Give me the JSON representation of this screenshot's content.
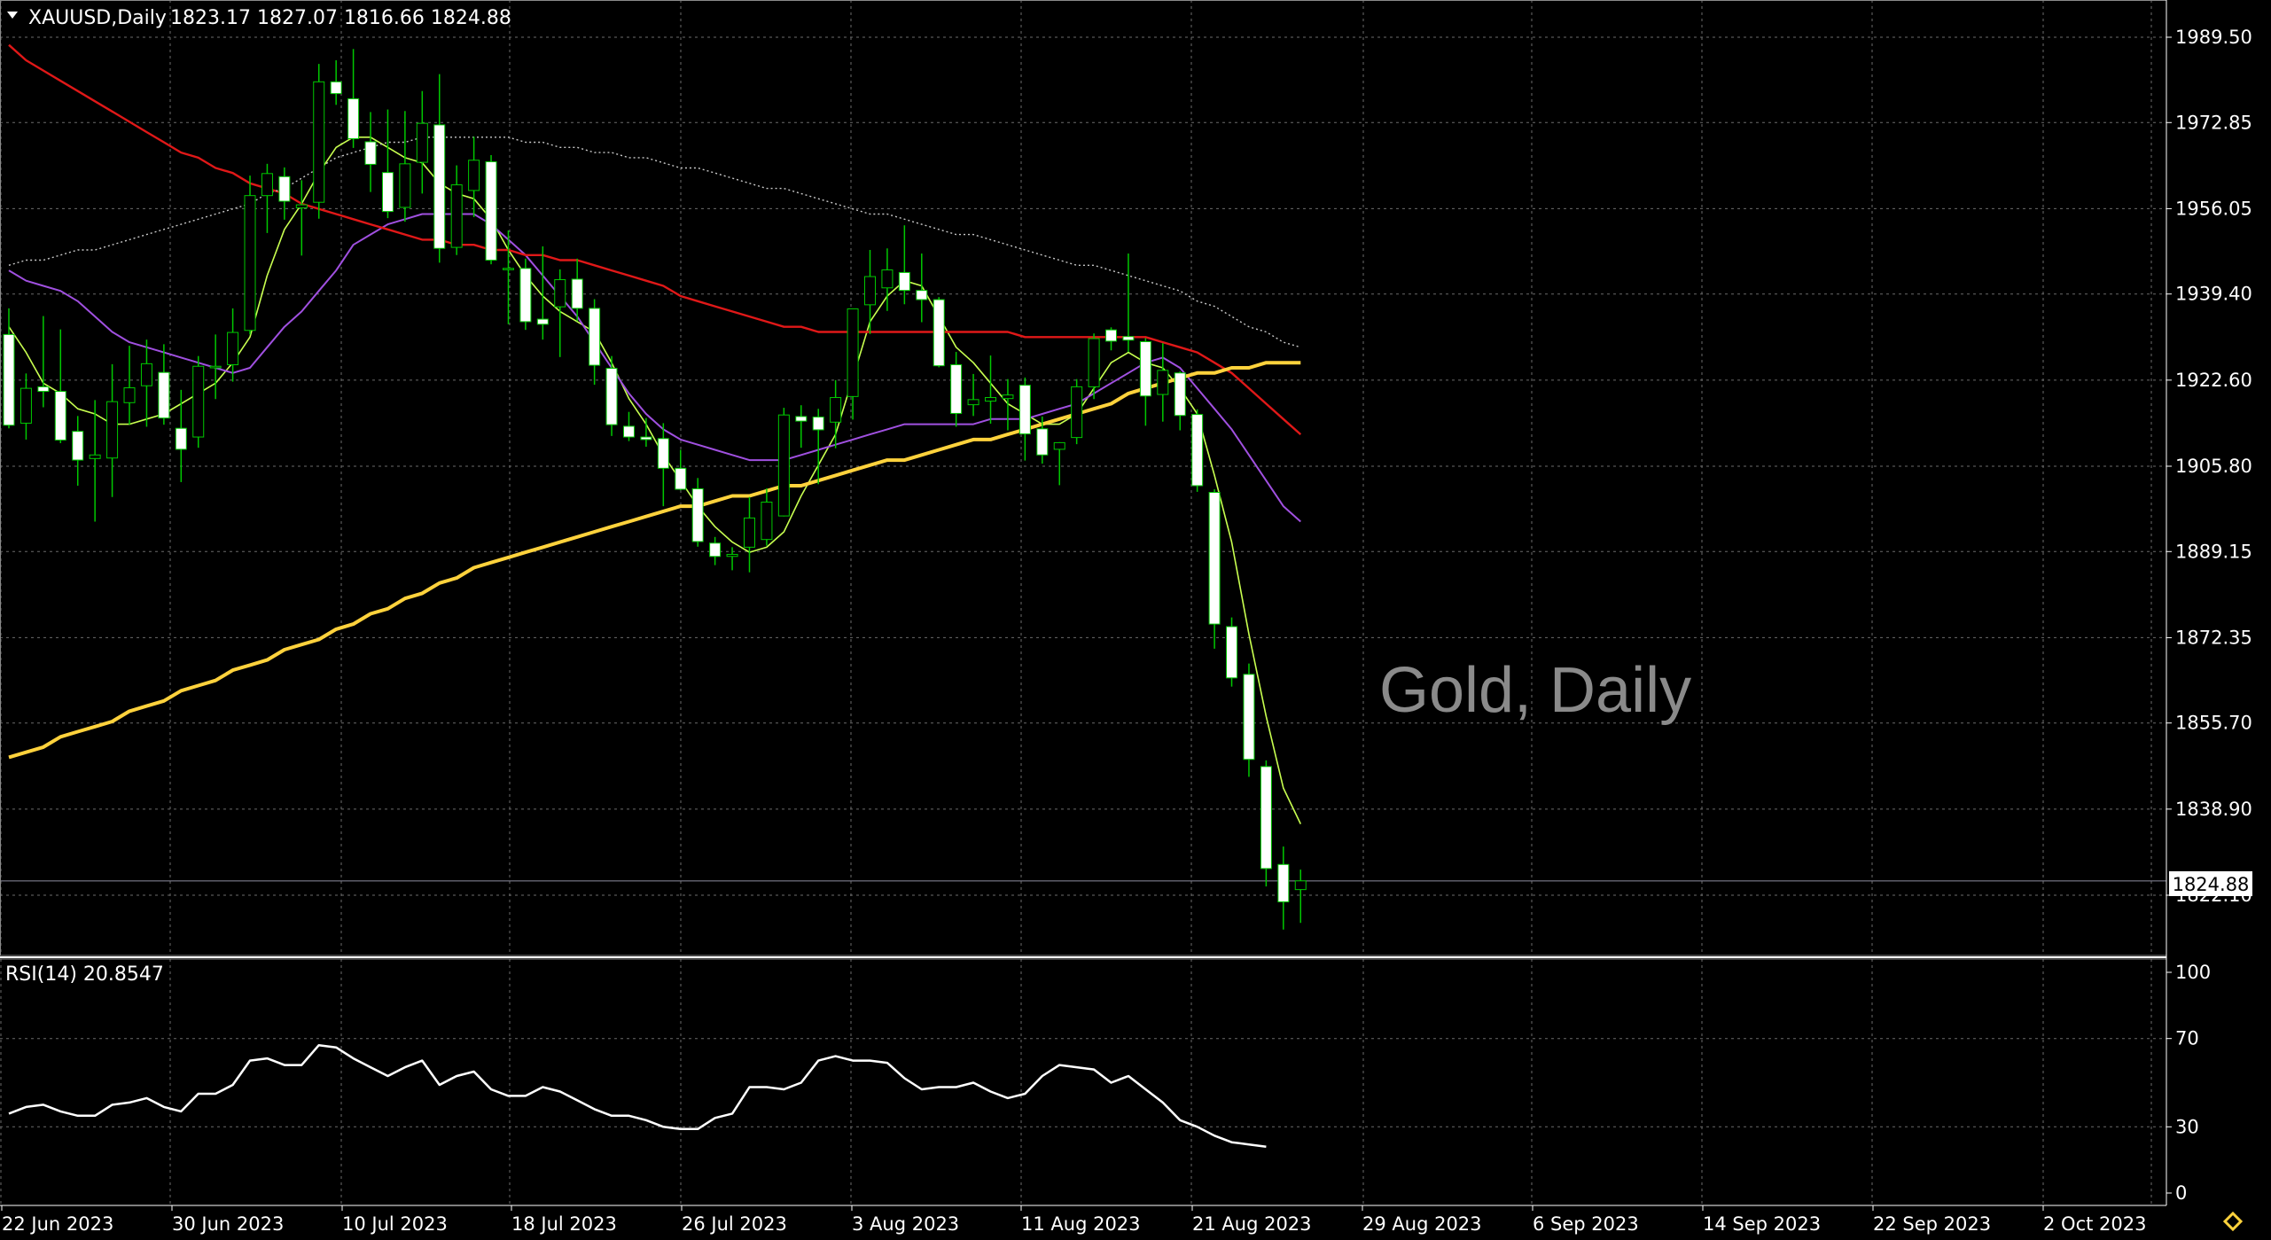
{
  "header": {
    "symbol": "XAUUSD,Daily",
    "ohlc": "1823.17 1827.07 1816.66 1824.88"
  },
  "watermark": "Gold, Daily",
  "current_price_label": "1824.88",
  "rsi_label": "RSI(14) 20.8547",
  "colors": {
    "background": "#000000",
    "grid": "#6b6b6b",
    "candle_up": "#000000",
    "candle_down": "#ffffff",
    "wick": "#00c800",
    "ma_fast": "#c8ff50",
    "ma_mid": "#a050e0",
    "ma_slow": "#e01818",
    "ma_long": "#ffd23c",
    "ma_dotted": "#c8c8c8",
    "rsi": "#ffffff",
    "watermark": "#8a8a8a"
  },
  "chart_data": [
    {
      "type": "candlestick",
      "title": "XAUUSD,Daily",
      "ylim": [
        1810,
        2000
      ],
      "y_ticks": [
        "1989.50",
        "1972.85",
        "1956.05",
        "1939.40",
        "1922.60",
        "1905.80",
        "1889.15",
        "1872.35",
        "1855.70",
        "1838.90",
        "1822.10"
      ],
      "x_ticks": [
        "22 Jun 2023",
        "30 Jun 2023",
        "10 Jul 2023",
        "18 Jul 2023",
        "26 Jul 2023",
        "3 Aug 2023",
        "11 Aug 2023",
        "21 Aug 2023",
        "29 Aug 2023",
        "6 Sep 2023",
        "14 Sep 2023",
        "22 Sep 2023",
        "2 Oct 2023"
      ],
      "candles": [
        {
          "o": 1931.5,
          "h": 1936.6,
          "l": 1913.2,
          "c": 1913.8
        },
        {
          "o": 1914.2,
          "h": 1923.9,
          "l": 1911.0,
          "c": 1921.0
        },
        {
          "o": 1921.3,
          "h": 1935.1,
          "l": 1917.3,
          "c": 1920.4
        },
        {
          "o": 1920.4,
          "h": 1932.5,
          "l": 1910.3,
          "c": 1910.9
        },
        {
          "o": 1912.6,
          "h": 1915.6,
          "l": 1902.0,
          "c": 1907.0
        },
        {
          "o": 1907.3,
          "h": 1918.7,
          "l": 1895.0,
          "c": 1908.0
        },
        {
          "o": 1907.4,
          "h": 1925.7,
          "l": 1899.8,
          "c": 1918.4
        },
        {
          "o": 1918.2,
          "h": 1929.3,
          "l": 1913.9,
          "c": 1921.1
        },
        {
          "o": 1921.5,
          "h": 1930.5,
          "l": 1913.5,
          "c": 1925.8
        },
        {
          "o": 1924.1,
          "h": 1929.6,
          "l": 1913.9,
          "c": 1915.2
        },
        {
          "o": 1913.2,
          "h": 1920.7,
          "l": 1902.7,
          "c": 1909.1
        },
        {
          "o": 1911.5,
          "h": 1927.3,
          "l": 1909.4,
          "c": 1925.3
        },
        {
          "o": 1925.0,
          "h": 1931.5,
          "l": 1918.9,
          "c": 1925.3
        },
        {
          "o": 1925.6,
          "h": 1936.6,
          "l": 1922.3,
          "c": 1931.9
        },
        {
          "o": 1932.3,
          "h": 1962.5,
          "l": 1931.5,
          "c": 1958.6
        },
        {
          "o": 1958.6,
          "h": 1964.8,
          "l": 1951.3,
          "c": 1962.9
        },
        {
          "o": 1962.3,
          "h": 1964.1,
          "l": 1953.9,
          "c": 1957.5
        },
        {
          "o": 1956.2,
          "h": 1961.6,
          "l": 1946.9,
          "c": 1956.8
        },
        {
          "o": 1957.3,
          "h": 1984.3,
          "l": 1954.1,
          "c": 1980.8
        },
        {
          "o": 1980.8,
          "h": 1985.0,
          "l": 1976.3,
          "c": 1978.5
        },
        {
          "o": 1977.5,
          "h": 1987.2,
          "l": 1967.9,
          "c": 1969.7
        },
        {
          "o": 1969.1,
          "h": 1974.9,
          "l": 1959.3,
          "c": 1964.7
        },
        {
          "o": 1963.1,
          "h": 1975.4,
          "l": 1954.2,
          "c": 1955.5
        },
        {
          "o": 1956.3,
          "h": 1975.1,
          "l": 1953.5,
          "c": 1964.8
        },
        {
          "o": 1965.1,
          "h": 1979.0,
          "l": 1959.0,
          "c": 1972.7
        },
        {
          "o": 1972.4,
          "h": 1982.3,
          "l": 1945.5,
          "c": 1948.3
        },
        {
          "o": 1948.5,
          "h": 1964.5,
          "l": 1947.0,
          "c": 1960.7
        },
        {
          "o": 1959.6,
          "h": 1970.1,
          "l": 1954.4,
          "c": 1965.5
        },
        {
          "o": 1965.2,
          "h": 1966.5,
          "l": 1945.2,
          "c": 1946.0
        },
        {
          "o": 1944.4,
          "h": 1951.8,
          "l": 1933.5,
          "c": 1944.4
        },
        {
          "o": 1944.4,
          "h": 1946.3,
          "l": 1932.4,
          "c": 1934.0
        },
        {
          "o": 1934.5,
          "h": 1948.7,
          "l": 1930.5,
          "c": 1933.5
        },
        {
          "o": 1936.9,
          "h": 1944.2,
          "l": 1927.1,
          "c": 1942.2
        },
        {
          "o": 1942.3,
          "h": 1946.3,
          "l": 1934.1,
          "c": 1936.6
        },
        {
          "o": 1936.6,
          "h": 1938.4,
          "l": 1921.7,
          "c": 1925.5
        },
        {
          "o": 1924.9,
          "h": 1927.3,
          "l": 1911.7,
          "c": 1913.9
        },
        {
          "o": 1913.6,
          "h": 1916.4,
          "l": 1910.7,
          "c": 1911.5
        },
        {
          "o": 1911.5,
          "h": 1915.2,
          "l": 1909.6,
          "c": 1911.0
        },
        {
          "o": 1911.2,
          "h": 1914.2,
          "l": 1898.0,
          "c": 1905.4
        },
        {
          "o": 1905.4,
          "h": 1909.0,
          "l": 1901.1,
          "c": 1901.3
        },
        {
          "o": 1901.4,
          "h": 1903.5,
          "l": 1890.1,
          "c": 1891.1
        },
        {
          "o": 1890.8,
          "h": 1892.0,
          "l": 1886.5,
          "c": 1888.2
        },
        {
          "o": 1888.2,
          "h": 1890.0,
          "l": 1885.5,
          "c": 1888.6
        },
        {
          "o": 1890.0,
          "h": 1899.8,
          "l": 1885.1,
          "c": 1895.7
        },
        {
          "o": 1891.5,
          "h": 1901.5,
          "l": 1890.3,
          "c": 1898.8
        },
        {
          "o": 1896.1,
          "h": 1917.2,
          "l": 1896.0,
          "c": 1915.8
        },
        {
          "o": 1915.5,
          "h": 1917.7,
          "l": 1909.4,
          "c": 1914.6
        },
        {
          "o": 1915.4,
          "h": 1917.0,
          "l": 1902.3,
          "c": 1912.9
        },
        {
          "o": 1914.4,
          "h": 1922.6,
          "l": 1909.3,
          "c": 1919.2
        },
        {
          "o": 1919.4,
          "h": 1935.4,
          "l": 1914.9,
          "c": 1936.5
        },
        {
          "o": 1937.3,
          "h": 1948.0,
          "l": 1931.6,
          "c": 1942.8
        },
        {
          "o": 1940.6,
          "h": 1948.3,
          "l": 1936.1,
          "c": 1944.1
        },
        {
          "o": 1943.6,
          "h": 1952.8,
          "l": 1937.4,
          "c": 1940.1
        },
        {
          "o": 1940.1,
          "h": 1947.3,
          "l": 1933.9,
          "c": 1938.3
        },
        {
          "o": 1938.3,
          "h": 1938.8,
          "l": 1925.1,
          "c": 1925.4
        },
        {
          "o": 1925.6,
          "h": 1928.1,
          "l": 1913.5,
          "c": 1916.1
        },
        {
          "o": 1917.8,
          "h": 1923.8,
          "l": 1915.6,
          "c": 1918.8
        },
        {
          "o": 1918.5,
          "h": 1927.4,
          "l": 1914.1,
          "c": 1919.2
        },
        {
          "o": 1919.0,
          "h": 1922.8,
          "l": 1912.8,
          "c": 1919.7
        },
        {
          "o": 1921.6,
          "h": 1923.1,
          "l": 1906.9,
          "c": 1912.1
        },
        {
          "o": 1913.1,
          "h": 1915.5,
          "l": 1906.3,
          "c": 1908.0
        },
        {
          "o": 1909.1,
          "h": 1910.5,
          "l": 1902.1,
          "c": 1910.4
        },
        {
          "o": 1911.4,
          "h": 1922.8,
          "l": 1910.1,
          "c": 1921.3
        },
        {
          "o": 1921.3,
          "h": 1931.7,
          "l": 1918.9,
          "c": 1930.7
        },
        {
          "o": 1932.4,
          "h": 1932.9,
          "l": 1928.4,
          "c": 1930.2
        },
        {
          "o": 1931.1,
          "h": 1947.3,
          "l": 1928.1,
          "c": 1930.4
        },
        {
          "o": 1930.1,
          "h": 1930.8,
          "l": 1913.7,
          "c": 1919.5
        },
        {
          "o": 1919.8,
          "h": 1929.8,
          "l": 1914.5,
          "c": 1924.5
        },
        {
          "o": 1924.0,
          "h": 1924.3,
          "l": 1912.8,
          "c": 1915.7
        },
        {
          "o": 1915.9,
          "h": 1916.9,
          "l": 1900.8,
          "c": 1902.0
        },
        {
          "o": 1900.7,
          "h": 1901.3,
          "l": 1870.2,
          "c": 1875.0
        },
        {
          "o": 1874.5,
          "h": 1876.3,
          "l": 1862.8,
          "c": 1864.5
        },
        {
          "o": 1865.2,
          "h": 1867.3,
          "l": 1845.2,
          "c": 1848.6
        },
        {
          "o": 1847.2,
          "h": 1848.4,
          "l": 1823.8,
          "c": 1827.3
        },
        {
          "o": 1828.1,
          "h": 1831.6,
          "l": 1815.4,
          "c": 1820.8
        },
        {
          "o": 1823.2,
          "h": 1827.1,
          "l": 1816.7,
          "c": 1824.9
        }
      ],
      "series": [
        {
          "color_key": "ma_fast",
          "values": [
            1933,
            1928,
            1922,
            1920,
            1917,
            1916,
            1914,
            1914,
            1915,
            1916,
            1918,
            1920,
            1922,
            1926,
            1931,
            1943,
            1952,
            1957,
            1963,
            1968,
            1970,
            1970,
            1968,
            1966,
            1965,
            1961,
            1959,
            1958,
            1954,
            1948,
            1943,
            1939,
            1936,
            1934,
            1932,
            1926,
            1919,
            1914,
            1908,
            1903,
            1898,
            1894,
            1891,
            1889,
            1890,
            1893,
            1900,
            1906,
            1912,
            1923,
            1934,
            1939,
            1942,
            1941,
            1935,
            1929,
            1926,
            1922,
            1918,
            1916,
            1914,
            1914,
            1916,
            1921,
            1926,
            1928,
            1926,
            1925,
            1921,
            1916,
            1904,
            1891,
            1873,
            1857,
            1843,
            1836
          ]
        },
        {
          "color_key": "ma_mid",
          "values": [
            1944,
            1942,
            1941,
            1940,
            1938,
            1935,
            1932,
            1930,
            1929,
            1928,
            1927,
            1926,
            1925,
            1924,
            1925,
            1929,
            1933,
            1936,
            1940,
            1944,
            1949,
            1951,
            1953,
            1954,
            1955,
            1955,
            1955,
            1955,
            1953,
            1950,
            1947,
            1943,
            1939,
            1935,
            1930,
            1925,
            1920,
            1916,
            1913,
            1911,
            1910,
            1909,
            1908,
            1907,
            1907,
            1907,
            1908,
            1909,
            1910,
            1911,
            1912,
            1913,
            1914,
            1914,
            1914,
            1914,
            1914,
            1915,
            1915,
            1915,
            1916,
            1917,
            1918,
            1920,
            1922,
            1924,
            1926,
            1927,
            1925,
            1921,
            1917,
            1913,
            1908,
            1903,
            1898,
            1895
          ]
        },
        {
          "color_key": "ma_slow",
          "values": [
            1988,
            1985,
            1983,
            1981,
            1979,
            1977,
            1975,
            1973,
            1971,
            1969,
            1967,
            1966,
            1964,
            1963,
            1961,
            1960,
            1959,
            1957,
            1956,
            1955,
            1954,
            1953,
            1952,
            1951,
            1950,
            1950,
            1949,
            1949,
            1948,
            1948,
            1947,
            1947,
            1946,
            1946,
            1945,
            1944,
            1943,
            1942,
            1941,
            1939,
            1938,
            1937,
            1936,
            1935,
            1934,
            1933,
            1933,
            1932,
            1932,
            1932,
            1932,
            1932,
            1932,
            1932,
            1932,
            1932,
            1932,
            1932,
            1932,
            1931,
            1931,
            1931,
            1931,
            1931,
            1931,
            1931,
            1931,
            1930,
            1929,
            1928,
            1926,
            1924,
            1921,
            1918,
            1915,
            1912
          ]
        },
        {
          "color_key": "ma_long",
          "values": [
            1849,
            1850,
            1851,
            1853,
            1854,
            1855,
            1856,
            1858,
            1859,
            1860,
            1862,
            1863,
            1864,
            1866,
            1867,
            1868,
            1870,
            1871,
            1872,
            1874,
            1875,
            1877,
            1878,
            1880,
            1881,
            1883,
            1884,
            1886,
            1887,
            1888,
            1889,
            1890,
            1891,
            1892,
            1893,
            1894,
            1895,
            1896,
            1897,
            1898,
            1898,
            1899,
            1900,
            1900,
            1901,
            1902,
            1902,
            1903,
            1904,
            1905,
            1906,
            1907,
            1907,
            1908,
            1909,
            1910,
            1911,
            1911,
            1912,
            1913,
            1914,
            1915,
            1916,
            1917,
            1918,
            1920,
            1921,
            1922,
            1923,
            1924,
            1924,
            1925,
            1925,
            1926,
            1926,
            1926
          ]
        },
        {
          "color_key": "ma_dotted",
          "values": [
            1945,
            1946,
            1946,
            1947,
            1948,
            1948,
            1949,
            1950,
            1951,
            1952,
            1953,
            1954,
            1955,
            1956,
            1957,
            1959,
            1960,
            1962,
            1964,
            1966,
            1967,
            1968,
            1969,
            1969,
            1970,
            1970,
            1970,
            1970,
            1970,
            1970,
            1969,
            1969,
            1968,
            1968,
            1967,
            1967,
            1966,
            1966,
            1965,
            1964,
            1964,
            1963,
            1962,
            1961,
            1960,
            1960,
            1959,
            1958,
            1957,
            1956,
            1955,
            1955,
            1954,
            1953,
            1952,
            1951,
            1951,
            1950,
            1949,
            1948,
            1947,
            1946,
            1945,
            1945,
            1944,
            1943,
            1942,
            1941,
            1940,
            1938,
            1937,
            1935,
            1933,
            1932,
            1930,
            1929
          ]
        }
      ]
    },
    {
      "type": "line",
      "title": "RSI(14) 20.8547",
      "ylim": [
        0,
        100
      ],
      "y_ticks": [
        "100",
        "70",
        "30",
        "0"
      ],
      "series": [
        {
          "name": "RSI(14) 20.8547",
          "color_key": "rsi",
          "values": [
            36,
            39,
            40,
            37,
            35,
            35,
            40,
            41,
            43,
            39,
            37,
            45,
            45,
            49,
            60,
            61,
            58,
            58,
            67,
            66,
            61,
            57,
            53,
            57,
            60,
            49,
            53,
            55,
            47,
            44,
            44,
            48,
            46,
            42,
            38,
            35,
            35,
            33,
            30,
            29,
            29,
            34,
            36,
            48,
            48,
            47,
            50,
            60,
            62,
            60,
            60,
            59,
            52,
            47,
            48,
            48,
            50,
            46,
            43,
            45,
            53,
            58,
            57,
            56,
            50,
            53,
            47,
            41,
            33,
            30,
            26,
            23,
            22,
            21
          ]
        }
      ]
    }
  ]
}
